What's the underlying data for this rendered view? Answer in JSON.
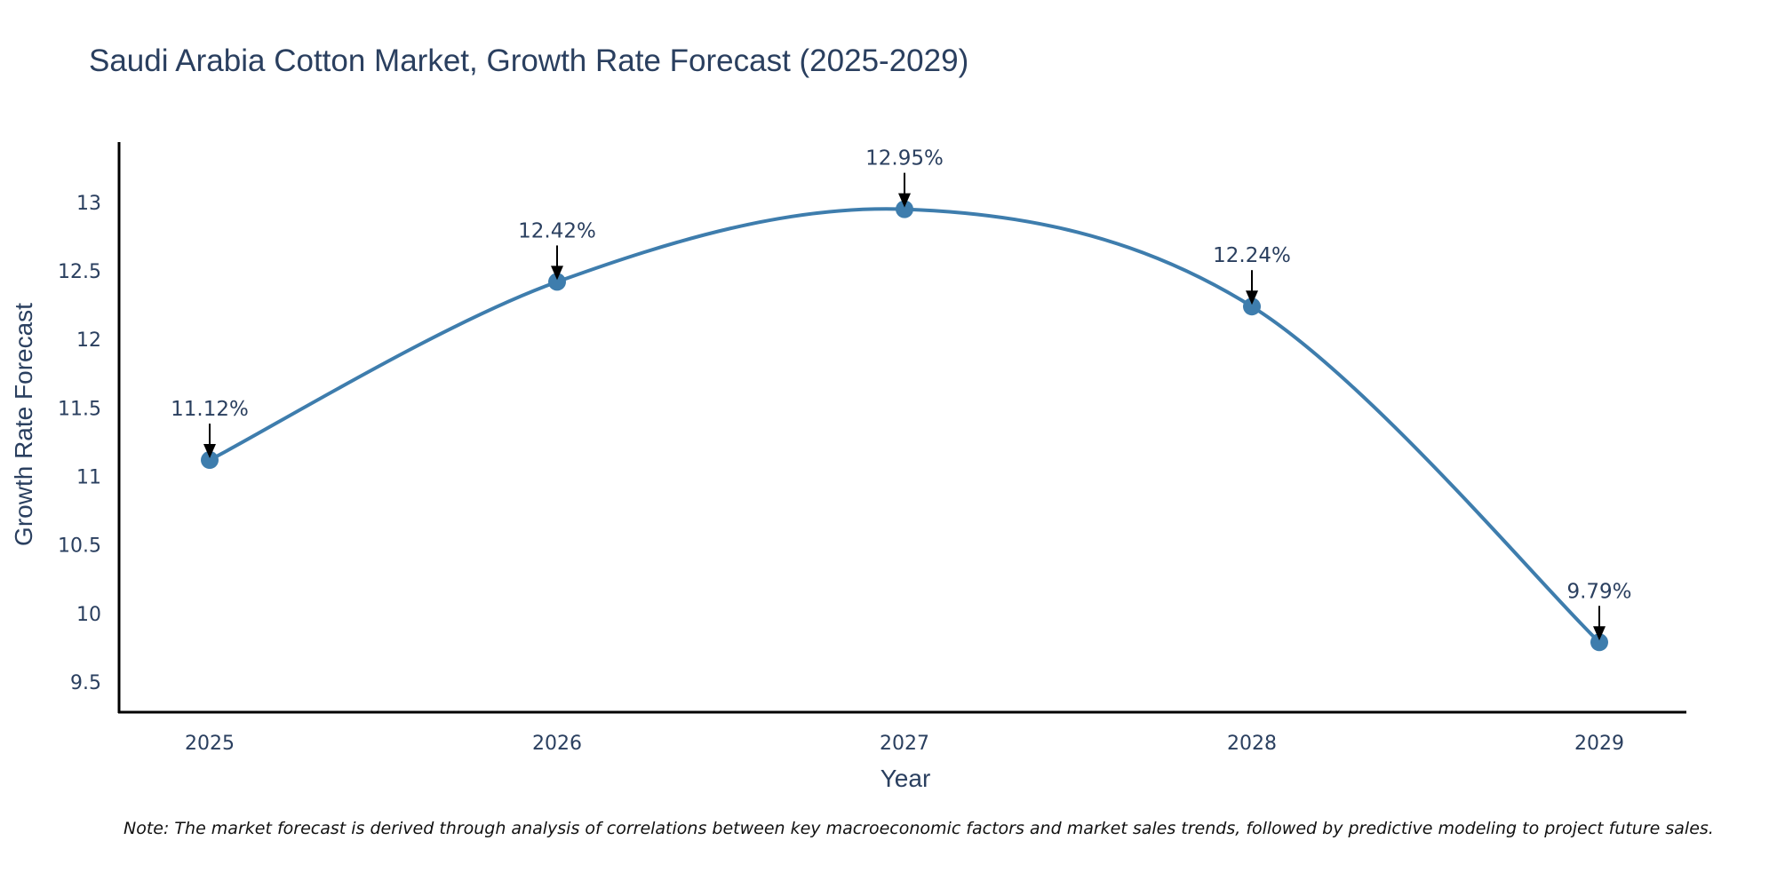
{
  "chart_data": {
    "type": "line",
    "title": "Saudi Arabia Cotton Market, Growth Rate Forecast (2025-2029)",
    "xlabel": "Year",
    "ylabel": "Growth Rate Forecast",
    "categories": [
      "2025",
      "2026",
      "2027",
      "2028",
      "2029"
    ],
    "series": [
      {
        "name": "Growth Rate Forecast",
        "values": [
          11.12,
          12.42,
          12.95,
          12.24,
          9.79
        ],
        "labels": [
          "11.12%",
          "12.42%",
          "12.95%",
          "12.24%",
          "9.79%"
        ],
        "color": "#3e7dad"
      }
    ],
    "ylim": [
      9.28,
      13.44
    ],
    "yticks": [
      9.5,
      10,
      10.5,
      11,
      11.5,
      12,
      12.5,
      13
    ],
    "ytick_labels": [
      "9.5",
      "10",
      "10.5",
      "11",
      "11.5",
      "12",
      "12.5",
      "13"
    ],
    "line_shape": "spline",
    "grid": false
  },
  "note": "Note: The market forecast is derived through analysis of correlations between key macroeconomic factors and market sales trends, followed by predictive modeling to project future sales."
}
